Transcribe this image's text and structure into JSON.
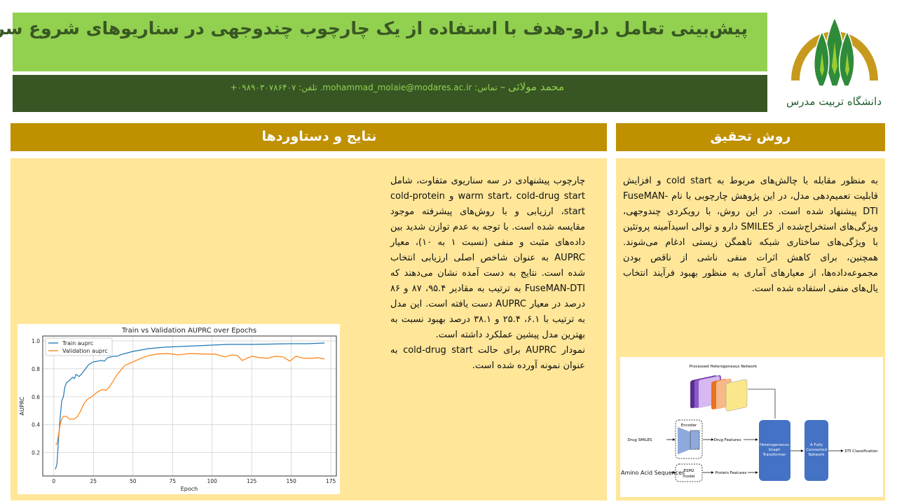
{
  "header": {
    "title": "پیش‌بینی تعامل دارو-هدف با استفاده از یک چارچوب چندوجهی در سناریوهای شروع سرد",
    "author_name": "محمد مولائی",
    "separator": "–",
    "contact": "تماس: mohammad_molaie@modares.ac.ir. تلفن: ۰۹۸۹۰۳۰۷۸۶۴۰۷+"
  },
  "logo": {
    "text": "دانشگاه تربیت مدرس",
    "colors": {
      "arc": "#c79a1e",
      "trees": "#2e8b3a",
      "accent": "#9acd32"
    }
  },
  "colors": {
    "title_bar": "#92d050",
    "author_bar": "#375623",
    "section_head": "#bf9000",
    "panel": "#ffe699"
  },
  "sections": {
    "results": {
      "title": "نتایج و دستاوردها",
      "paragraph_1": "چارچوب پیشنهادی در سه سناریوی متفاوت، شامل warm start، cold-drug start و cold-protein start، ارزیابی و با روش‌های پیشرفته موجود مقایسه شده است. با توجه به عدم توازن شدید بین داده‌های مثبت و منفی (نسبت ۱ به ۱۰)، معیار AUPRC به عنوان شاخص اصلی ارزیابی انتخاب شده است. نتایج به دست آمده نشان می‌دهند که FuseMAN-DTI به ترتیب به مقادیر ۹۵.۴، ۸۷ و ۸۶ درصد در معیار AUPRC دست یافته است. این مدل به ترتیب با ۶.۱، ۲۵.۴ و ۳۸.۱ درصد بهبود نسبت به بهترین مدل پیشین عملکرد داشته است.",
      "paragraph_2": "نمودار AUPRC برای حالت cold-drug start به عنوان نمونه آورده شده است."
    },
    "method": {
      "title": "روش تحقیق",
      "paragraph": "به منظور مقابله با چالش‌های مربوط به cold start و افزایش قابلیت تعمیم‌دهی مدل، در این پژوهش چارچوبی با نام FuseMAN-DTI پیشنهاد شده است. در این روش، با رویکردی چندوجهی، ویژگی‌های استخراج‌شده از SMILES دارو و توالی اسیدآمینه پروتئین با ویژگی‌های ساختاری شبکه ناهمگن زیستی ادغام می‌شوند. همچنین، برای کاهش اثرات منفی ناشی از ناقص بودن مجموعه‌داده‌ها، از معیارهای آماری به منظور بهبود فرآیند انتخاب یال‌های منفی استفاده شده است."
    }
  },
  "diagram": {
    "network_label": "Processed Heterogeneous Network",
    "drug_input": "Drug SMILES",
    "protein_input": "Amino Acid Sequences",
    "encoder_label": "Encoder",
    "esm_label_1": "ESM2",
    "esm_label_2": "model",
    "drug_features": "Drug Features",
    "protein_features": "Protein Features",
    "hgt_1": "Heterogeneous",
    "hgt_2": "Graph",
    "hgt_3": "Transformer",
    "fc_1": "A Fully",
    "fc_2": "Connected",
    "fc_3": "Network",
    "output": "DTI Classification",
    "block_color": "#4472c4"
  },
  "chart_data": {
    "type": "line",
    "title": "Train vs Validation AUPRC over Epochs",
    "xlabel": "Epoch",
    "ylabel": "AUPRC",
    "xlim": [
      -7,
      178.5
    ],
    "ylim": [
      0.033,
      1.035
    ],
    "xticks": [
      0,
      25,
      50,
      75,
      100,
      125,
      150,
      175
    ],
    "yticks": [
      0.2,
      0.4,
      0.6,
      0.8,
      1.0
    ],
    "grid": true,
    "legend_position": "top-left",
    "series": [
      {
        "name": "Train auprc",
        "color": "#1f77b4",
        "x": [
          1,
          2,
          3,
          4,
          5,
          6,
          7,
          8,
          10,
          12,
          13,
          14,
          16,
          18,
          20,
          22,
          25,
          28,
          30,
          32,
          34,
          38,
          40,
          42,
          45,
          50,
          55,
          60,
          70,
          80,
          90,
          100,
          110,
          125,
          140,
          150,
          160,
          171
        ],
        "y": [
          0.08,
          0.12,
          0.3,
          0.45,
          0.57,
          0.6,
          0.67,
          0.7,
          0.72,
          0.74,
          0.73,
          0.76,
          0.745,
          0.77,
          0.8,
          0.83,
          0.85,
          0.855,
          0.86,
          0.855,
          0.88,
          0.89,
          0.89,
          0.9,
          0.91,
          0.925,
          0.935,
          0.945,
          0.955,
          0.96,
          0.965,
          0.97,
          0.975,
          0.975,
          0.978,
          0.98,
          0.98,
          0.985
        ]
      },
      {
        "name": "Validation auprc",
        "color": "#ff7f0e",
        "x": [
          1,
          2,
          3,
          4,
          5,
          6,
          8,
          10,
          13,
          15,
          17,
          19,
          21,
          24,
          27,
          30,
          32,
          33,
          35,
          38,
          40,
          43,
          45,
          50,
          55,
          60,
          65,
          72,
          78,
          87,
          95,
          102,
          108,
          113,
          116,
          119,
          125,
          130,
          135,
          140,
          145,
          149,
          153,
          158,
          163,
          167,
          171
        ],
        "y": [
          0.26,
          0.26,
          0.33,
          0.4,
          0.44,
          0.46,
          0.46,
          0.44,
          0.44,
          0.46,
          0.5,
          0.55,
          0.58,
          0.6,
          0.63,
          0.65,
          0.65,
          0.645,
          0.67,
          0.72,
          0.76,
          0.8,
          0.825,
          0.85,
          0.875,
          0.895,
          0.905,
          0.91,
          0.9,
          0.91,
          0.905,
          0.905,
          0.885,
          0.9,
          0.895,
          0.86,
          0.89,
          0.88,
          0.875,
          0.89,
          0.885,
          0.855,
          0.89,
          0.875,
          0.875,
          0.88,
          0.87
        ]
      }
    ]
  }
}
